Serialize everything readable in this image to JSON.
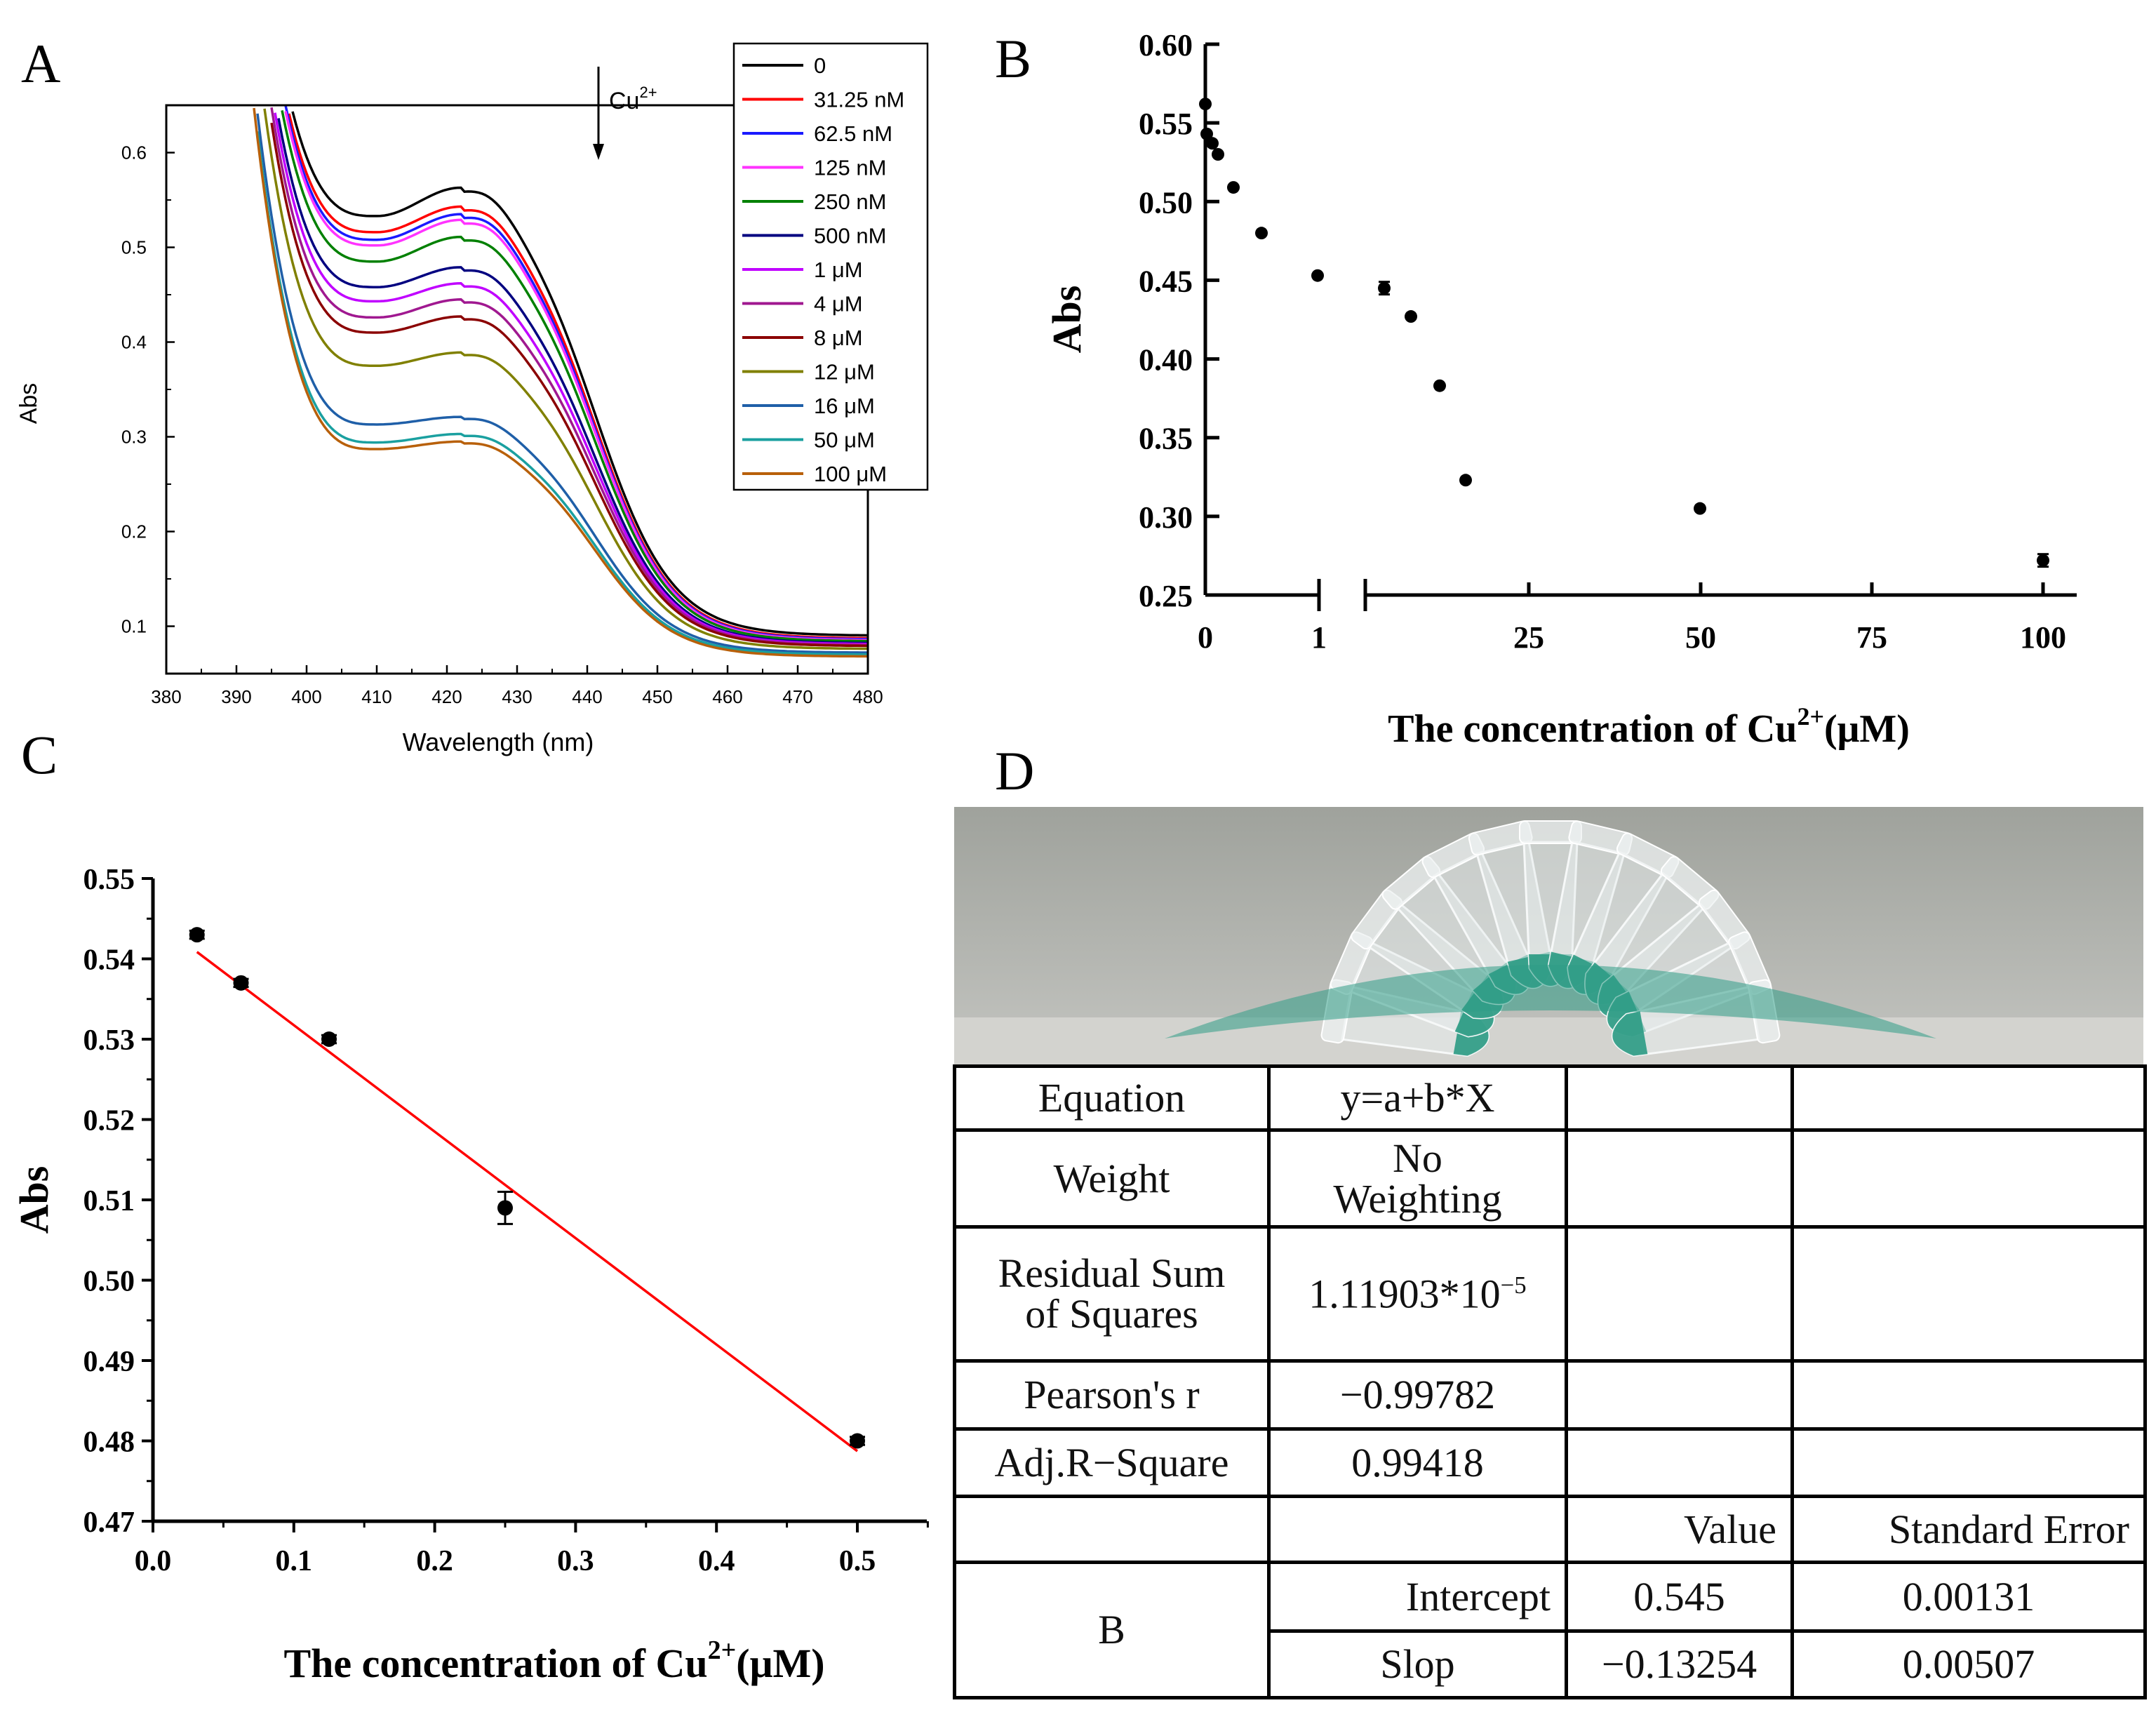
{
  "panels": {
    "a": "A",
    "b": "B",
    "c": "C",
    "d": "D"
  },
  "chart_data": [
    {
      "id": "A",
      "type": "line",
      "xlabel": "Wavelength (nm)",
      "ylabel": "Abs",
      "xlim": [
        380,
        480
      ],
      "ylim": [
        0.05,
        0.65
      ],
      "xticks": [
        380,
        390,
        400,
        410,
        420,
        430,
        440,
        450,
        460,
        470,
        480
      ],
      "yticks": [
        0.1,
        0.2,
        0.3,
        0.4,
        0.5,
        0.6
      ],
      "annotation": "Cu",
      "annotation_sup": "2+",
      "legend_position": "top-right",
      "series": [
        {
          "name": "0",
          "color": "#000000",
          "peak": 0.563,
          "trough": 0.533,
          "tail": 0.09
        },
        {
          "name": "31.25 nM",
          "color": "#ff0000",
          "peak": 0.543,
          "trough": 0.516,
          "tail": 0.087
        },
        {
          "name": "62.5 nM",
          "color": "#1a1aff",
          "peak": 0.535,
          "trough": 0.508,
          "tail": 0.086
        },
        {
          "name": "125 nM",
          "color": "#ff33ff",
          "peak": 0.529,
          "trough": 0.502,
          "tail": 0.085
        },
        {
          "name": "250 nM",
          "color": "#008000",
          "peak": 0.511,
          "trough": 0.485,
          "tail": 0.084
        },
        {
          "name": "500 nM",
          "color": "#000080",
          "peak": 0.479,
          "trough": 0.458,
          "tail": 0.082
        },
        {
          "name": "1 μM",
          "color": "#c000ff",
          "peak": 0.462,
          "trough": 0.443,
          "tail": 0.081
        },
        {
          "name": "4 μM",
          "color": "#a01890",
          "peak": 0.445,
          "trough": 0.426,
          "tail": 0.08
        },
        {
          "name": "8 μM",
          "color": "#8b0000",
          "peak": 0.427,
          "trough": 0.41,
          "tail": 0.079
        },
        {
          "name": "12 μM",
          "color": "#808000",
          "peak": 0.389,
          "trough": 0.375,
          "tail": 0.076
        },
        {
          "name": "16 μM",
          "color": "#1f5fa8",
          "peak": 0.321,
          "trough": 0.313,
          "tail": 0.072
        },
        {
          "name": "50 μM",
          "color": "#1aa0a0",
          "peak": 0.303,
          "trough": 0.294,
          "tail": 0.07
        },
        {
          "name": "100 μM",
          "color": "#b8600a",
          "peak": 0.295,
          "trough": 0.287,
          "tail": 0.068
        }
      ]
    },
    {
      "id": "B",
      "type": "scatter",
      "xlabel": "The concentration of Cu",
      "xlabel_sup": "2+",
      "xlabel_tail": "(μM)",
      "ylabel": "Abs",
      "ylim": [
        0.25,
        0.6
      ],
      "yticks": [
        "0.25",
        "0.30",
        "0.35",
        "0.40",
        "0.45",
        "0.50",
        "0.55",
        "0.60"
      ],
      "x_break_segments": [
        [
          0,
          1
        ],
        [
          1,
          100
        ]
      ],
      "xticks": [
        "0",
        "1",
        "25",
        "50",
        "75",
        "100"
      ],
      "points": [
        {
          "x": 0,
          "y": 0.562,
          "err": 0
        },
        {
          "x": 0.03125,
          "y": 0.543,
          "err": 0
        },
        {
          "x": 0.0625,
          "y": 0.537,
          "err": 0
        },
        {
          "x": 0.125,
          "y": 0.53,
          "err": 0
        },
        {
          "x": 0.25,
          "y": 0.509,
          "err": 0
        },
        {
          "x": 0.5,
          "y": 0.48,
          "err": 0
        },
        {
          "x": 1,
          "y": 0.453,
          "err": 0
        },
        {
          "x": 4,
          "y": 0.445,
          "err": 0.004
        },
        {
          "x": 8,
          "y": 0.427,
          "err": 0
        },
        {
          "x": 12,
          "y": 0.383,
          "err": 0
        },
        {
          "x": 16,
          "y": 0.323,
          "err": 0
        },
        {
          "x": 50,
          "y": 0.305,
          "err": 0
        },
        {
          "x": 100,
          "y": 0.272,
          "err": 0.004
        }
      ]
    },
    {
      "id": "C",
      "type": "scatter",
      "xlabel": "The concentration of Cu",
      "xlabel_sup": "2+",
      "xlabel_tail": "(μM)",
      "ylabel": "Abs",
      "xlim": [
        0,
        0.55
      ],
      "ylim": [
        0.47,
        0.55
      ],
      "xticks": [
        "0.0",
        "0.1",
        "0.2",
        "0.3",
        "0.4",
        "0.5"
      ],
      "yticks": [
        "0.47",
        "0.48",
        "0.49",
        "0.50",
        "0.51",
        "0.52",
        "0.53",
        "0.54",
        "0.55"
      ],
      "points": [
        {
          "x": 0.03125,
          "y": 0.543,
          "err": 0.0005
        },
        {
          "x": 0.0625,
          "y": 0.537,
          "err": 0.0005
        },
        {
          "x": 0.125,
          "y": 0.53,
          "err": 0.0005
        },
        {
          "x": 0.25,
          "y": 0.509,
          "err": 0.002
        },
        {
          "x": 0.5,
          "y": 0.48,
          "err": 0.0005
        }
      ],
      "fit": {
        "color": "#ff0000",
        "intercept": 0.545,
        "slope": -0.13254,
        "x_range": [
          0.03125,
          0.5
        ]
      }
    }
  ],
  "table": {
    "equation_label": "Equation",
    "equation_value": "y=a+b*X",
    "weight_label": "Weight",
    "weight_value_1": "No",
    "weight_value_2": "Weighting",
    "rss_label_1": "Residual Sum",
    "rss_label_2": "of Squares",
    "rss_value": "1.11903*10",
    "rss_exp": "−5",
    "pearson_label": "Pearson's r",
    "pearson_value": "−0.99782",
    "adjr_label": "Adj.R−Square",
    "adjr_value": "0.99418",
    "value_header": "Value",
    "se_header": "Standard Error",
    "param_group": "B",
    "intercept_label": "Intercept",
    "intercept_value": "0.545",
    "intercept_se": "0.00131",
    "slope_label": "Slop",
    "slope_value": "−0.13254",
    "slope_se": "0.00507"
  },
  "photo": {
    "tube_count": 13,
    "liquid_color": "#2f9c86",
    "tube_color": "#e8ecec",
    "background_color": "#b0b2ad"
  }
}
